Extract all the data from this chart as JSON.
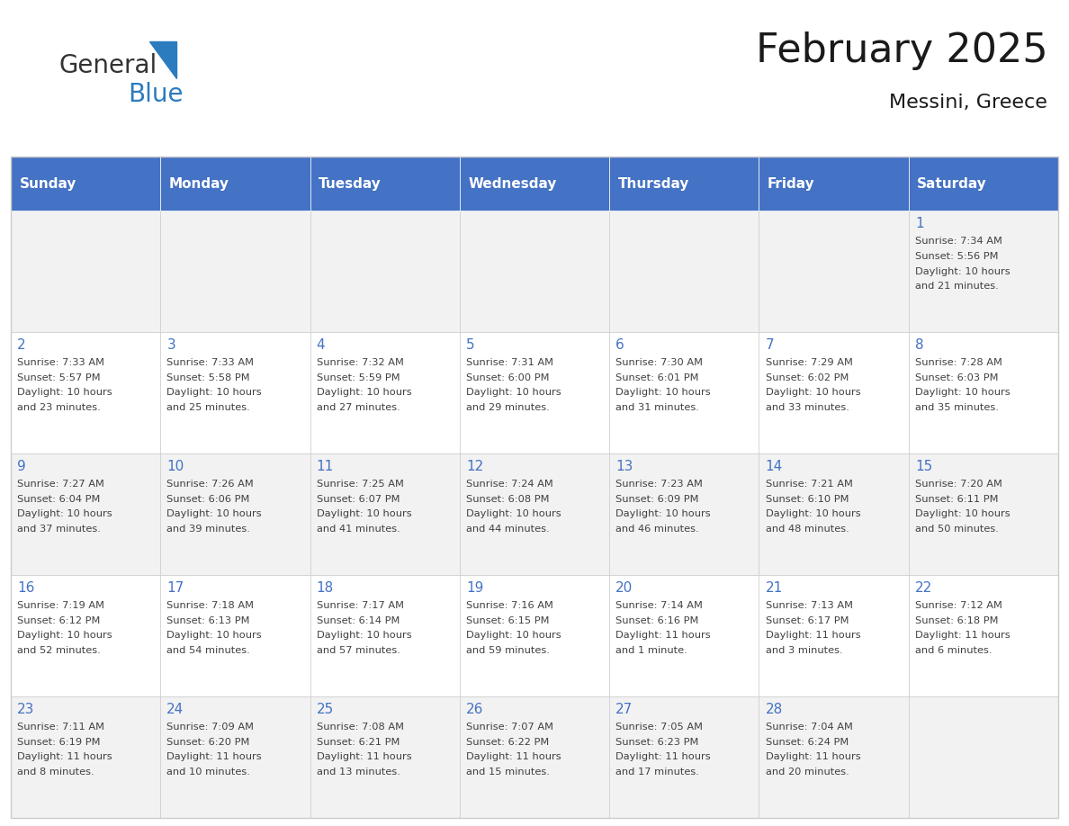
{
  "title": "February 2025",
  "subtitle": "Messini, Greece",
  "header_color": "#4472C4",
  "header_text_color": "#FFFFFF",
  "cell_bg_even": "#F2F2F2",
  "cell_bg_odd": "#FFFFFF",
  "day_number_color": "#4472C4",
  "text_color": "#404040",
  "days_of_week": [
    "Sunday",
    "Monday",
    "Tuesday",
    "Wednesday",
    "Thursday",
    "Friday",
    "Saturday"
  ],
  "weeks": [
    [
      {
        "day": null,
        "sunrise": null,
        "sunset": null,
        "daylight": null
      },
      {
        "day": null,
        "sunrise": null,
        "sunset": null,
        "daylight": null
      },
      {
        "day": null,
        "sunrise": null,
        "sunset": null,
        "daylight": null
      },
      {
        "day": null,
        "sunrise": null,
        "sunset": null,
        "daylight": null
      },
      {
        "day": null,
        "sunrise": null,
        "sunset": null,
        "daylight": null
      },
      {
        "day": null,
        "sunrise": null,
        "sunset": null,
        "daylight": null
      },
      {
        "day": 1,
        "sunrise": "7:34 AM",
        "sunset": "5:56 PM",
        "daylight": "10 hours\nand 21 minutes."
      }
    ],
    [
      {
        "day": 2,
        "sunrise": "7:33 AM",
        "sunset": "5:57 PM",
        "daylight": "10 hours\nand 23 minutes."
      },
      {
        "day": 3,
        "sunrise": "7:33 AM",
        "sunset": "5:58 PM",
        "daylight": "10 hours\nand 25 minutes."
      },
      {
        "day": 4,
        "sunrise": "7:32 AM",
        "sunset": "5:59 PM",
        "daylight": "10 hours\nand 27 minutes."
      },
      {
        "day": 5,
        "sunrise": "7:31 AM",
        "sunset": "6:00 PM",
        "daylight": "10 hours\nand 29 minutes."
      },
      {
        "day": 6,
        "sunrise": "7:30 AM",
        "sunset": "6:01 PM",
        "daylight": "10 hours\nand 31 minutes."
      },
      {
        "day": 7,
        "sunrise": "7:29 AM",
        "sunset": "6:02 PM",
        "daylight": "10 hours\nand 33 minutes."
      },
      {
        "day": 8,
        "sunrise": "7:28 AM",
        "sunset": "6:03 PM",
        "daylight": "10 hours\nand 35 minutes."
      }
    ],
    [
      {
        "day": 9,
        "sunrise": "7:27 AM",
        "sunset": "6:04 PM",
        "daylight": "10 hours\nand 37 minutes."
      },
      {
        "day": 10,
        "sunrise": "7:26 AM",
        "sunset": "6:06 PM",
        "daylight": "10 hours\nand 39 minutes."
      },
      {
        "day": 11,
        "sunrise": "7:25 AM",
        "sunset": "6:07 PM",
        "daylight": "10 hours\nand 41 minutes."
      },
      {
        "day": 12,
        "sunrise": "7:24 AM",
        "sunset": "6:08 PM",
        "daylight": "10 hours\nand 44 minutes."
      },
      {
        "day": 13,
        "sunrise": "7:23 AM",
        "sunset": "6:09 PM",
        "daylight": "10 hours\nand 46 minutes."
      },
      {
        "day": 14,
        "sunrise": "7:21 AM",
        "sunset": "6:10 PM",
        "daylight": "10 hours\nand 48 minutes."
      },
      {
        "day": 15,
        "sunrise": "7:20 AM",
        "sunset": "6:11 PM",
        "daylight": "10 hours\nand 50 minutes."
      }
    ],
    [
      {
        "day": 16,
        "sunrise": "7:19 AM",
        "sunset": "6:12 PM",
        "daylight": "10 hours\nand 52 minutes."
      },
      {
        "day": 17,
        "sunrise": "7:18 AM",
        "sunset": "6:13 PM",
        "daylight": "10 hours\nand 54 minutes."
      },
      {
        "day": 18,
        "sunrise": "7:17 AM",
        "sunset": "6:14 PM",
        "daylight": "10 hours\nand 57 minutes."
      },
      {
        "day": 19,
        "sunrise": "7:16 AM",
        "sunset": "6:15 PM",
        "daylight": "10 hours\nand 59 minutes."
      },
      {
        "day": 20,
        "sunrise": "7:14 AM",
        "sunset": "6:16 PM",
        "daylight": "11 hours\nand 1 minute."
      },
      {
        "day": 21,
        "sunrise": "7:13 AM",
        "sunset": "6:17 PM",
        "daylight": "11 hours\nand 3 minutes."
      },
      {
        "day": 22,
        "sunrise": "7:12 AM",
        "sunset": "6:18 PM",
        "daylight": "11 hours\nand 6 minutes."
      }
    ],
    [
      {
        "day": 23,
        "sunrise": "7:11 AM",
        "sunset": "6:19 PM",
        "daylight": "11 hours\nand 8 minutes."
      },
      {
        "day": 24,
        "sunrise": "7:09 AM",
        "sunset": "6:20 PM",
        "daylight": "11 hours\nand 10 minutes."
      },
      {
        "day": 25,
        "sunrise": "7:08 AM",
        "sunset": "6:21 PM",
        "daylight": "11 hours\nand 13 minutes."
      },
      {
        "day": 26,
        "sunrise": "7:07 AM",
        "sunset": "6:22 PM",
        "daylight": "11 hours\nand 15 minutes."
      },
      {
        "day": 27,
        "sunrise": "7:05 AM",
        "sunset": "6:23 PM",
        "daylight": "11 hours\nand 17 minutes."
      },
      {
        "day": 28,
        "sunrise": "7:04 AM",
        "sunset": "6:24 PM",
        "daylight": "11 hours\nand 20 minutes."
      },
      {
        "day": null,
        "sunrise": null,
        "sunset": null,
        "daylight": null
      }
    ]
  ],
  "logo_text1": "General",
  "logo_text2": "Blue",
  "logo_color1": "#333333",
  "logo_color2": "#2B7BBF",
  "logo_triangle_color": "#2B7BBF"
}
